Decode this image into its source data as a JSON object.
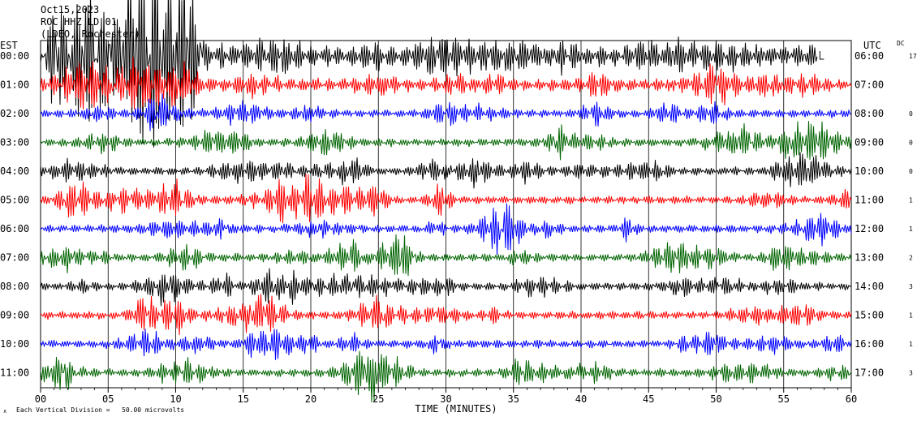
{
  "header": {
    "date": "Oct15,2023",
    "station": "ROC HHZ LD 01",
    "location": "(LDEO, Rochester)"
  },
  "chart_data": {
    "type": "line",
    "title": "",
    "left_axis_label": "EST",
    "right_axis_label": "UTC",
    "dc_label": "DC",
    "xlabel": "TIME (MINUTES)",
    "xlim": [
      0,
      60
    ],
    "x_ticks": [
      "00",
      "05",
      "10",
      "15",
      "20",
      "25",
      "30",
      "35",
      "40",
      "45",
      "50",
      "55",
      "60"
    ],
    "grid": true,
    "footer_note": "Each Vertical Division =   50.00 microvolts",
    "rows": [
      {
        "est": "00:00",
        "utc": "06:00",
        "dc": "17",
        "color": "#000000",
        "end_minute": 57.5
      },
      {
        "est": "01:00",
        "utc": "07:00",
        "dc": "",
        "color": "#ff0000",
        "end_minute": 60
      },
      {
        "est": "02:00",
        "utc": "08:00",
        "dc": "0",
        "color": "#0000ff",
        "end_minute": 60
      },
      {
        "est": "03:00",
        "utc": "09:00",
        "dc": "0",
        "color": "#006400",
        "end_minute": 60
      },
      {
        "est": "04:00",
        "utc": "10:00",
        "dc": "0",
        "color": "#000000",
        "end_minute": 60
      },
      {
        "est": "05:00",
        "utc": "11:00",
        "dc": "1",
        "color": "#ff0000",
        "end_minute": 60
      },
      {
        "est": "06:00",
        "utc": "12:00",
        "dc": "1",
        "color": "#0000ff",
        "end_minute": 60
      },
      {
        "est": "07:00",
        "utc": "13:00",
        "dc": "2",
        "color": "#006400",
        "end_minute": 60
      },
      {
        "est": "08:00",
        "utc": "14:00",
        "dc": "3",
        "color": "#000000",
        "end_minute": 60
      },
      {
        "est": "09:00",
        "utc": "15:00",
        "dc": "1",
        "color": "#ff0000",
        "end_minute": 60
      },
      {
        "est": "10:00",
        "utc": "16:00",
        "dc": "1",
        "color": "#0000ff",
        "end_minute": 60
      },
      {
        "est": "11:00",
        "utc": "17:00",
        "dc": "3",
        "color": "#006400",
        "end_minute": 60
      }
    ]
  }
}
